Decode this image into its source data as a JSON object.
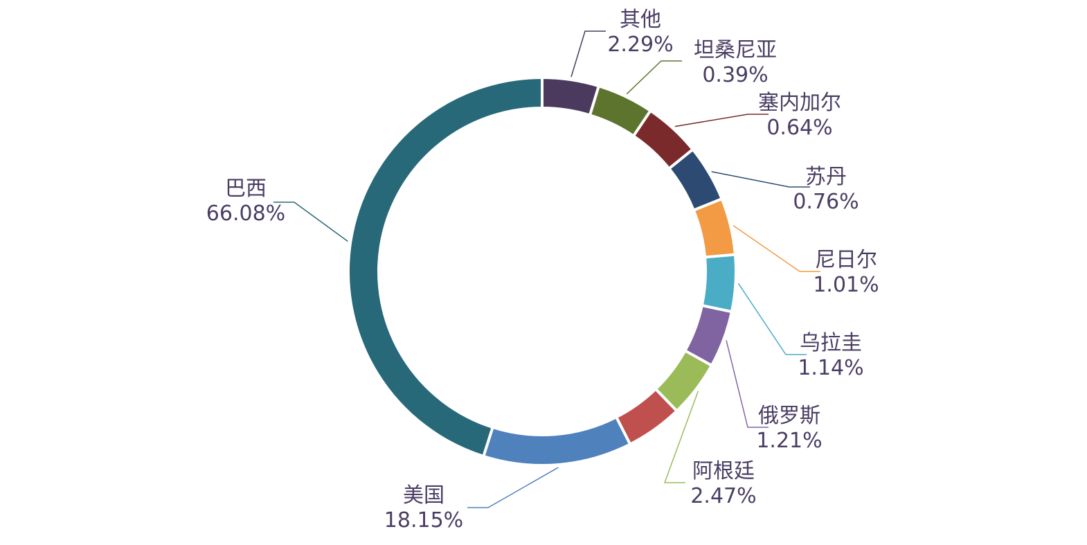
{
  "chart_data": {
    "type": "donut",
    "categories": [
      "其他",
      "坦桑尼亚",
      "塞内加尔",
      "苏丹",
      "尼日尔",
      "乌拉圭",
      "俄罗斯",
      "阿根廷",
      null,
      "美国",
      "巴西"
    ],
    "values": [
      2.29,
      0.39,
      0.64,
      0.76,
      1.01,
      1.14,
      1.21,
      2.47,
      5.86,
      18.15,
      66.08
    ],
    "value_labels": [
      "2.29%",
      "0.39%",
      "0.64%",
      "0.76%",
      "1.01%",
      "1.14%",
      "1.21%",
      "2.47%",
      null,
      "18.15%",
      "66.08%"
    ],
    "colors": [
      "#4b3a5e",
      "#5d742e",
      "#7a2a2a",
      "#2d4a73",
      "#f39a45",
      "#4bacc6",
      "#8064a2",
      "#9bbb59",
      "#c0504d",
      "#4f81bd",
      "#276879"
    ],
    "min_angle": 17
  }
}
